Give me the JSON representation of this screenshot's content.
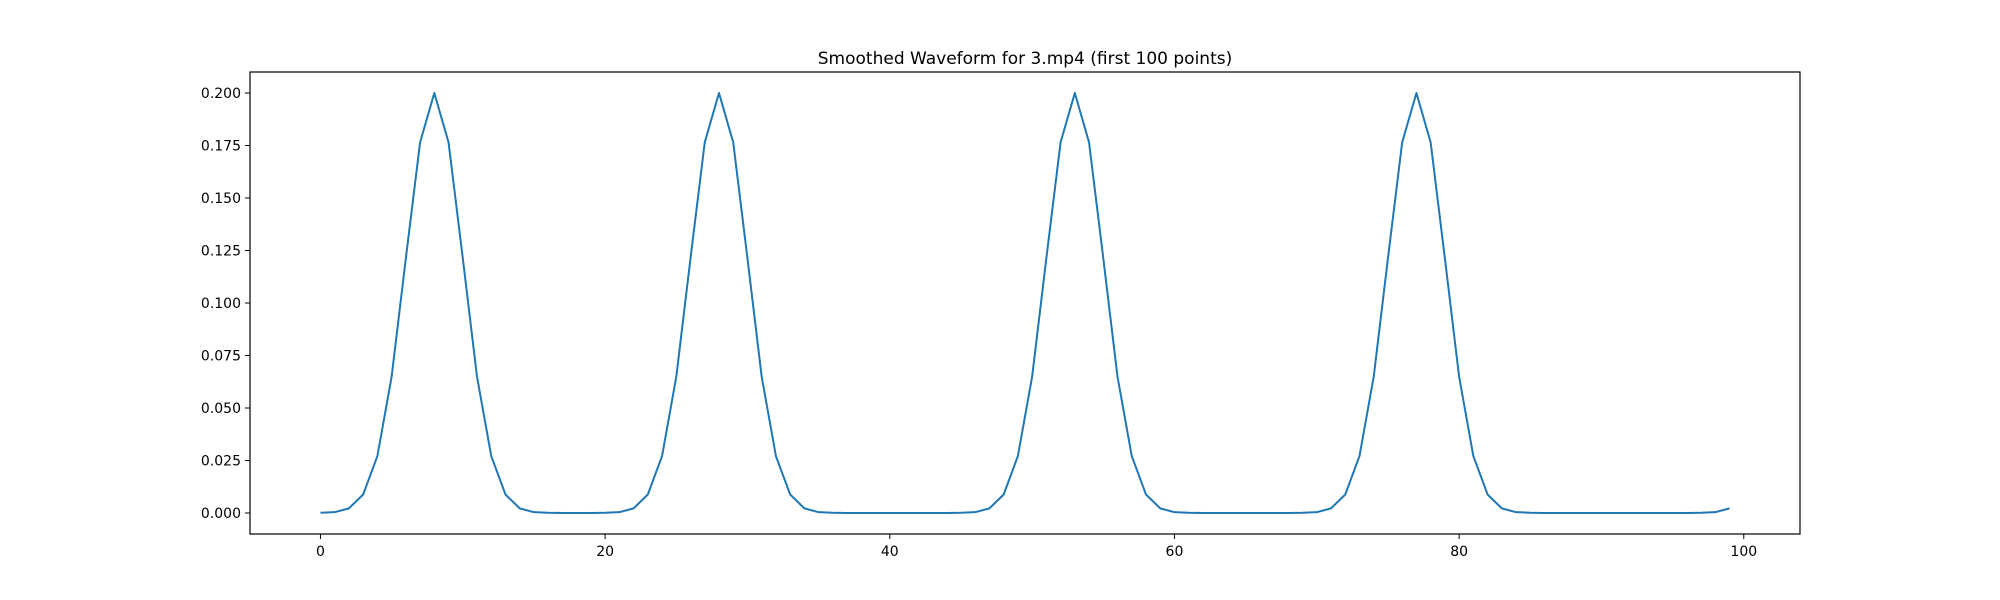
{
  "chart_data": {
    "type": "line",
    "title": "Smoothed Waveform for 3.mp4 (first 100 points)",
    "xlabel": "",
    "ylabel": "",
    "xlim": [
      -4.95,
      103.95
    ],
    "ylim": [
      -0.01,
      0.21
    ],
    "xticks": [
      0,
      20,
      40,
      60,
      80,
      100
    ],
    "xtick_labels": [
      "0",
      "20",
      "40",
      "60",
      "80",
      "100"
    ],
    "yticks": [
      0,
      0.025,
      0.05,
      0.075,
      0.1,
      0.125,
      0.15,
      0.175,
      0.2
    ],
    "ytick_labels": [
      "0.000",
      "0.025",
      "0.050",
      "0.075",
      "0.100",
      "0.125",
      "0.150",
      "0.175",
      "0.200"
    ],
    "grid": false,
    "series": [
      {
        "name": "waveform",
        "color": "#1f77b4",
        "x_start": 0,
        "values": [
          0.0001,
          0.0004,
          0.0022,
          0.0088,
          0.0271,
          0.0649,
          0.1213,
          0.1765,
          0.2,
          0.1765,
          0.1213,
          0.0649,
          0.0271,
          0.0088,
          0.0022,
          0.0004,
          0.0001,
          0,
          0,
          0,
          0.0001,
          0.0004,
          0.0022,
          0.0088,
          0.0271,
          0.0649,
          0.1213,
          0.1765,
          0.2,
          0.1765,
          0.1213,
          0.0649,
          0.0271,
          0.0088,
          0.0022,
          0.0004,
          0.0001,
          0,
          0,
          0,
          0,
          0,
          0,
          0,
          0,
          0.0001,
          0.0004,
          0.0022,
          0.0088,
          0.0271,
          0.0649,
          0.1213,
          0.1765,
          0.2,
          0.1765,
          0.1213,
          0.0649,
          0.0271,
          0.0088,
          0.0022,
          0.0004,
          0.0001,
          0,
          0,
          0,
          0,
          0,
          0,
          0,
          0.0001,
          0.0004,
          0.0022,
          0.0088,
          0.0271,
          0.0649,
          0.1213,
          0.1765,
          0.2,
          0.1765,
          0.1213,
          0.0649,
          0.0271,
          0.0088,
          0.0022,
          0.0004,
          0.0001,
          0,
          0,
          0,
          0,
          0,
          0,
          0,
          0,
          0,
          0,
          0,
          0.0001,
          0.0004,
          0.0022
        ]
      }
    ]
  }
}
